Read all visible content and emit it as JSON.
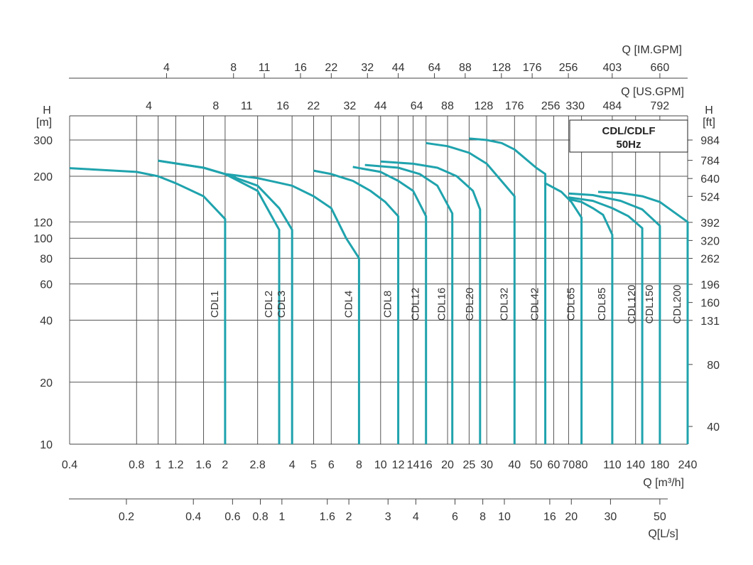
{
  "chart_data": {
    "type": "line",
    "title": "CDL/CDLF",
    "subtitle": "50Hz",
    "curve_color": "#1fa3ad",
    "scale": "log-log",
    "xlabel": "Q [m³/h]",
    "xlim": [
      0.4,
      240
    ],
    "ylabel_left_symbol": "H",
    "ylabel_left_unit": "[m]",
    "ylabel_right_symbol": "H",
    "ylabel_right_unit": "[ft]",
    "ylim": [
      10,
      300
    ],
    "x_ticks": [
      "0.4",
      "0.8",
      "1",
      "1.2",
      "1.6",
      "2",
      "2.8",
      "4",
      "5",
      "6",
      "8",
      "10",
      "12",
      "14",
      "16",
      "20",
      "25",
      "30",
      "40",
      "50",
      "60",
      "70",
      "80",
      "110",
      "140",
      "180",
      "240"
    ],
    "y_ticks_m": [
      "10",
      "20",
      "40",
      "60",
      "80",
      "100",
      "120",
      "200",
      "300"
    ],
    "y_ticks_ft": [
      "40",
      "80",
      "131",
      "160",
      "196",
      "262",
      "320",
      "392",
      "524",
      "640",
      "784",
      "984"
    ],
    "top_axis_1_label": "Q [IM.GPM]",
    "top_axis_1_ticks": [
      "4",
      "8",
      "11",
      "16",
      "22",
      "32",
      "44",
      "64",
      "88",
      "128",
      "176",
      "256",
      "403",
      "660"
    ],
    "top_axis_2_label": "Q [US.GPM]",
    "top_axis_2_ticks": [
      "4",
      "8",
      "11",
      "16",
      "22",
      "32",
      "44",
      "64",
      "88",
      "128",
      "176",
      "256",
      "330",
      "484",
      "792"
    ],
    "bottom_axis_label": "Q[L/s]",
    "bottom_axis_ticks": [
      "0.2",
      "0.4",
      "0.6",
      "0.8",
      "1",
      "1.6",
      "2",
      "3",
      "4",
      "6",
      "8",
      "10",
      "16",
      "20",
      "30",
      "50"
    ],
    "series": [
      {
        "name": "CDL1",
        "points": [
          [
            0.4,
            219
          ],
          [
            0.8,
            210
          ],
          [
            1.0,
            200
          ],
          [
            1.2,
            185
          ],
          [
            1.6,
            160
          ],
          [
            2.0,
            124
          ]
        ],
        "q_max": 2
      },
      {
        "name": "CDL2",
        "points": [
          [
            1.0,
            238
          ],
          [
            1.6,
            220
          ],
          [
            2.0,
            205
          ],
          [
            2.8,
            170
          ],
          [
            3.5,
            110
          ]
        ],
        "q_max": 3.5
      },
      {
        "name": "CDL3",
        "points": [
          [
            1.0,
            238
          ],
          [
            1.6,
            220
          ],
          [
            2.0,
            205
          ],
          [
            2.8,
            180
          ],
          [
            3.5,
            140
          ],
          [
            4.0,
            110
          ]
        ],
        "q_max": 4
      },
      {
        "name": "CDL4",
        "points": [
          [
            2.0,
            205
          ],
          [
            2.8,
            196
          ],
          [
            4.0,
            180
          ],
          [
            5.0,
            160
          ],
          [
            6.0,
            140
          ],
          [
            7.0,
            100
          ],
          [
            8.0,
            80
          ]
        ],
        "q_max": 8
      },
      {
        "name": "CDL8",
        "points": [
          [
            5.0,
            213
          ],
          [
            6.0,
            205
          ],
          [
            7.5,
            190
          ],
          [
            9.0,
            170
          ],
          [
            10.5,
            150
          ],
          [
            12.0,
            128
          ]
        ],
        "q_max": 12
      },
      {
        "name": "CDL12",
        "points": [
          [
            7.5,
            222
          ],
          [
            10.0,
            210
          ],
          [
            12.0,
            190
          ],
          [
            14.0,
            170
          ],
          [
            16.0,
            128
          ]
        ],
        "q_max": 16
      },
      {
        "name": "CDL16",
        "points": [
          [
            8.5,
            227
          ],
          [
            12.0,
            220
          ],
          [
            15.0,
            205
          ],
          [
            18.0,
            180
          ],
          [
            21.0,
            132
          ]
        ],
        "q_max": 21
      },
      {
        "name": "CDL20",
        "points": [
          [
            10.0,
            236
          ],
          [
            14.0,
            230
          ],
          [
            18.0,
            220
          ],
          [
            22.0,
            200
          ],
          [
            26.0,
            170
          ],
          [
            28.0,
            138
          ]
        ],
        "q_max": 28
      },
      {
        "name": "CDL32",
        "points": [
          [
            16.0,
            290
          ],
          [
            20.0,
            280
          ],
          [
            25.0,
            260
          ],
          [
            30.0,
            230
          ],
          [
            40.0,
            160
          ]
        ],
        "q_max": 40
      },
      {
        "name": "CDL42",
        "points": [
          [
            25.0,
            305
          ],
          [
            30.0,
            300
          ],
          [
            35.0,
            290
          ],
          [
            40.0,
            270
          ],
          [
            50.0,
            220
          ],
          [
            55.0,
            205
          ]
        ],
        "q_max": 55
      },
      {
        "name": "CDL65",
        "points": [
          [
            55.0,
            185
          ],
          [
            65.0,
            168
          ],
          [
            72.0,
            150
          ],
          [
            80.0,
            126
          ]
        ],
        "q_max": 80
      },
      {
        "name": "CDL85",
        "points": [
          [
            70.0,
            155
          ],
          [
            80.0,
            150
          ],
          [
            90.0,
            140
          ],
          [
            100.0,
            130
          ],
          [
            110.0,
            104
          ]
        ],
        "q_max": 110
      },
      {
        "name": "CDL120",
        "points": [
          [
            70.0,
            158
          ],
          [
            90.0,
            152
          ],
          [
            110.0,
            140
          ],
          [
            130.0,
            128
          ],
          [
            150.0,
            112
          ]
        ],
        "q_max": 150
      },
      {
        "name": "CDL150",
        "points": [
          [
            70.0,
            165
          ],
          [
            90.0,
            162
          ],
          [
            120.0,
            152
          ],
          [
            150.0,
            138
          ],
          [
            180.0,
            115
          ]
        ],
        "q_max": 180
      },
      {
        "name": "CDL200",
        "points": [
          [
            95.0,
            168
          ],
          [
            120.0,
            166
          ],
          [
            150.0,
            160
          ],
          [
            180.0,
            150
          ],
          [
            240.0,
            120
          ]
        ],
        "q_max": 240
      }
    ]
  }
}
